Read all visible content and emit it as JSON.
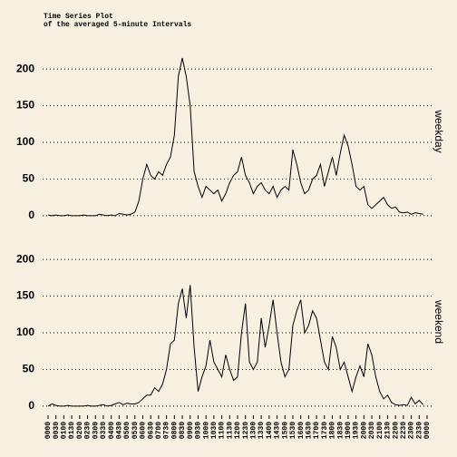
{
  "chart_data": {
    "type": "line",
    "title": "Time Series Plot",
    "subtitle": "of the averaged 5-minute Intervals",
    "x": [
      0,
      15,
      30,
      45,
      60,
      75,
      90,
      105,
      120,
      135,
      150,
      165,
      180,
      195,
      210,
      225,
      240,
      255,
      270,
      285,
      300,
      315,
      330,
      345,
      360,
      375,
      390,
      405,
      420,
      435,
      450,
      465,
      480,
      495,
      510,
      525,
      540,
      555,
      570,
      585,
      600,
      615,
      630,
      645,
      660,
      675,
      690,
      705,
      720,
      735,
      750,
      765,
      780,
      795,
      810,
      825,
      840,
      855,
      870,
      885,
      900,
      915,
      930,
      945,
      960,
      975,
      990,
      1005,
      1020,
      1035,
      1050,
      1065,
      1080,
      1095,
      1110,
      1125,
      1140,
      1155,
      1170,
      1185,
      1200,
      1215,
      1230,
      1245,
      1260,
      1275,
      1290,
      1305,
      1320,
      1335,
      1350,
      1365,
      1380,
      1395,
      1410,
      1425
    ],
    "series": [
      {
        "name": "weekday",
        "color": "#000000",
        "values": [
          1,
          0,
          1,
          0,
          0,
          1,
          0,
          0,
          0,
          1,
          0,
          0,
          0,
          2,
          1,
          0,
          1,
          0,
          3,
          2,
          1,
          2,
          5,
          20,
          50,
          70,
          55,
          50,
          60,
          55,
          70,
          80,
          110,
          190,
          215,
          190,
          150,
          60,
          40,
          25,
          40,
          35,
          30,
          35,
          20,
          30,
          45,
          55,
          60,
          80,
          55,
          45,
          30,
          40,
          45,
          35,
          30,
          40,
          25,
          35,
          40,
          35,
          90,
          70,
          45,
          30,
          35,
          50,
          55,
          70,
          40,
          60,
          80,
          55,
          85,
          110,
          95,
          70,
          40,
          35,
          40,
          15,
          10,
          15,
          20,
          25,
          15,
          10,
          12,
          5,
          4,
          5,
          2,
          4,
          3,
          2
        ]
      },
      {
        "name": "weekend",
        "color": "#000000",
        "values": [
          0,
          3,
          1,
          0,
          0,
          1,
          0,
          0,
          0,
          0,
          1,
          0,
          0,
          1,
          2,
          0,
          1,
          3,
          5,
          2,
          4,
          3,
          3,
          5,
          10,
          15,
          15,
          25,
          20,
          30,
          50,
          85,
          90,
          140,
          160,
          120,
          165,
          80,
          20,
          40,
          55,
          90,
          60,
          50,
          40,
          70,
          50,
          35,
          40,
          100,
          140,
          60,
          50,
          60,
          120,
          80,
          110,
          145,
          100,
          60,
          40,
          50,
          110,
          130,
          145,
          100,
          110,
          130,
          120,
          90,
          60,
          50,
          95,
          80,
          50,
          60,
          40,
          20,
          40,
          55,
          40,
          85,
          70,
          40,
          20,
          10,
          15,
          5,
          2,
          1,
          2,
          1,
          12,
          3,
          8,
          2
        ]
      }
    ],
    "xlim": [
      0,
      1440
    ],
    "xticks": [
      {
        "value": 0,
        "label": "0000"
      },
      {
        "value": 30,
        "label": "0030"
      },
      {
        "value": 60,
        "label": "0100"
      },
      {
        "value": 90,
        "label": "0130"
      },
      {
        "value": 120,
        "label": "0200"
      },
      {
        "value": 150,
        "label": "0230"
      },
      {
        "value": 180,
        "label": "0300"
      },
      {
        "value": 210,
        "label": "0330"
      },
      {
        "value": 240,
        "label": "0400"
      },
      {
        "value": 270,
        "label": "0430"
      },
      {
        "value": 300,
        "label": "0500"
      },
      {
        "value": 330,
        "label": "0530"
      },
      {
        "value": 360,
        "label": "0600"
      },
      {
        "value": 390,
        "label": "0630"
      },
      {
        "value": 420,
        "label": "0700"
      },
      {
        "value": 450,
        "label": "0730"
      },
      {
        "value": 480,
        "label": "0800"
      },
      {
        "value": 510,
        "label": "0830"
      },
      {
        "value": 540,
        "label": "0900"
      },
      {
        "value": 570,
        "label": "0930"
      },
      {
        "value": 600,
        "label": "1000"
      },
      {
        "value": 630,
        "label": "1030"
      },
      {
        "value": 660,
        "label": "1100"
      },
      {
        "value": 690,
        "label": "1130"
      },
      {
        "value": 720,
        "label": "1200"
      },
      {
        "value": 750,
        "label": "1230"
      },
      {
        "value": 780,
        "label": "1300"
      },
      {
        "value": 810,
        "label": "1330"
      },
      {
        "value": 840,
        "label": "1400"
      },
      {
        "value": 870,
        "label": "1430"
      },
      {
        "value": 900,
        "label": "1500"
      },
      {
        "value": 930,
        "label": "1530"
      },
      {
        "value": 960,
        "label": "1600"
      },
      {
        "value": 990,
        "label": "1630"
      },
      {
        "value": 1020,
        "label": "1700"
      },
      {
        "value": 1050,
        "label": "1730"
      },
      {
        "value": 1080,
        "label": "1800"
      },
      {
        "value": 1110,
        "label": "1830"
      },
      {
        "value": 1140,
        "label": "1900"
      },
      {
        "value": 1170,
        "label": "1930"
      },
      {
        "value": 1200,
        "label": "2000"
      },
      {
        "value": 1230,
        "label": "2030"
      },
      {
        "value": 1260,
        "label": "2100"
      },
      {
        "value": 1290,
        "label": "2130"
      },
      {
        "value": 1320,
        "label": "2200"
      },
      {
        "value": 1350,
        "label": "2230"
      },
      {
        "value": 1380,
        "label": "2300"
      },
      {
        "value": 1410,
        "label": "2330"
      },
      {
        "value": 1440,
        "label": "0000"
      }
    ],
    "ylim": [
      -10,
      215
    ],
    "yticks": [
      0,
      50,
      100,
      150,
      200
    ],
    "grid": true
  }
}
